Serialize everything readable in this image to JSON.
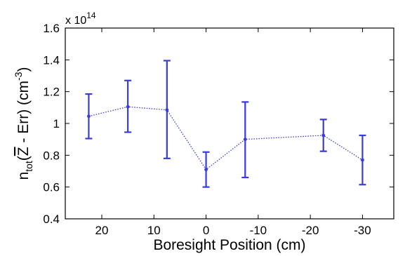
{
  "chart_data": {
    "type": "line",
    "xlabel": "Boresight Position (cm)",
    "ylabel": {
      "n": "n",
      "sub": "tot",
      "paren_open": "(",
      "zbar": "Z",
      "after_z": " - Err) (cm",
      "exp": "-3",
      "close": ")"
    },
    "y_multiplier": {
      "base": "x 10",
      "exp": "14"
    },
    "x_reversed": true,
    "xlim": [
      -36,
      27
    ],
    "ylim": [
      0.4,
      1.6
    ],
    "x_ticks": [
      20,
      10,
      0,
      -10,
      -20,
      -30
    ],
    "x_tick_labels": [
      "20",
      "10",
      "0",
      "-10",
      "-20",
      "-30"
    ],
    "y_ticks": [
      0.4,
      0.6,
      0.8,
      1.0,
      1.2,
      1.4,
      1.6
    ],
    "y_tick_labels": [
      "0.4",
      "0.6",
      "0.8",
      "1",
      "1.2",
      "1.4",
      "1.6"
    ],
    "grid": false,
    "color": "#3b3bdb",
    "series": [
      {
        "x": [
          22.5,
          15,
          7.5,
          0,
          -7.5,
          -22.5,
          -30
        ],
        "y": [
          1.045,
          1.105,
          1.085,
          0.71,
          0.9,
          0.925,
          0.77
        ],
        "err_lower": [
          0.905,
          0.945,
          0.78,
          0.6,
          0.66,
          0.825,
          0.615
        ],
        "err_upper": [
          1.185,
          1.27,
          1.395,
          0.82,
          1.135,
          1.025,
          0.925
        ]
      }
    ]
  }
}
